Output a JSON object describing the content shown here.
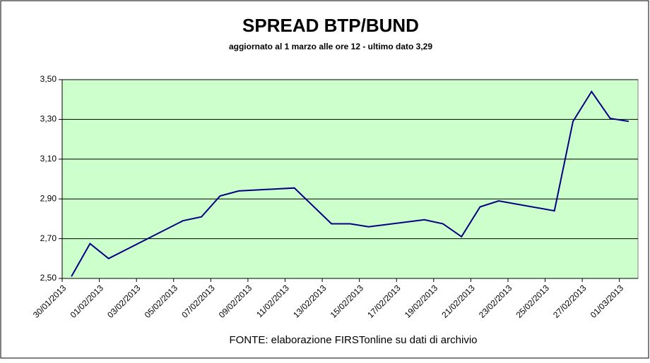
{
  "chart_data": {
    "type": "line",
    "title": "SPREAD  BTP/BUND",
    "subtitle": "aggiornato al 1 marzo alle ore 12 - ultimo dato 3,29",
    "source": "FONTE: elaborazione FIRSTonline su dati di archivio",
    "x": [
      "2013-01-30",
      "2013-01-31",
      "2013-02-01",
      "2013-02-05",
      "2013-02-06",
      "2013-02-07",
      "2013-02-08",
      "2013-02-11",
      "2013-02-13",
      "2013-02-14",
      "2013-02-15",
      "2013-02-18",
      "2013-02-19",
      "2013-02-20",
      "2013-02-21",
      "2013-02-22",
      "2013-02-25",
      "2013-02-26",
      "2013-02-27",
      "2013-02-28",
      "2013-03-01"
    ],
    "series": [
      {
        "name": "Spread",
        "color": "#000080",
        "values": [
          2.51,
          2.675,
          2.6,
          2.79,
          2.81,
          2.915,
          2.94,
          2.955,
          2.775,
          2.775,
          2.76,
          2.795,
          2.775,
          2.71,
          2.86,
          2.89,
          2.84,
          3.29,
          3.44,
          3.305,
          3.29
        ]
      }
    ],
    "xlim": [
      "2013-01-30",
      "2013-03-02"
    ],
    "xticks": [
      {
        "value": "2013-01-30",
        "label": "30/01/2013"
      },
      {
        "value": "2013-02-01",
        "label": "01/02/2013"
      },
      {
        "value": "2013-02-03",
        "label": "03/02/2013"
      },
      {
        "value": "2013-02-05",
        "label": "05/02/2013"
      },
      {
        "value": "2013-02-07",
        "label": "07/02/2013"
      },
      {
        "value": "2013-02-09",
        "label": "09/02/2013"
      },
      {
        "value": "2013-02-11",
        "label": "11/02/2013"
      },
      {
        "value": "2013-02-13",
        "label": "13/02/2013"
      },
      {
        "value": "2013-02-15",
        "label": "15/02/2013"
      },
      {
        "value": "2013-02-17",
        "label": "17/02/2013"
      },
      {
        "value": "2013-02-19",
        "label": "19/02/2013"
      },
      {
        "value": "2013-02-21",
        "label": "21/02/2013"
      },
      {
        "value": "2013-02-23",
        "label": "23/02/2013"
      },
      {
        "value": "2013-02-25",
        "label": "25/02/2013"
      },
      {
        "value": "2013-02-27",
        "label": "27/02/2013"
      },
      {
        "value": "2013-03-01",
        "label": "01/03/2013"
      }
    ],
    "ylim": [
      2.5,
      3.5
    ],
    "yticks": [
      {
        "value": 2.5,
        "label": "2,50"
      },
      {
        "value": 2.7,
        "label": "2,70"
      },
      {
        "value": 2.9,
        "label": "2,90"
      },
      {
        "value": 3.1,
        "label": "3,10"
      },
      {
        "value": 3.3,
        "label": "3,30"
      },
      {
        "value": 3.5,
        "label": "3,50"
      }
    ],
    "grid": true,
    "plot_background": "#ccffcc"
  }
}
